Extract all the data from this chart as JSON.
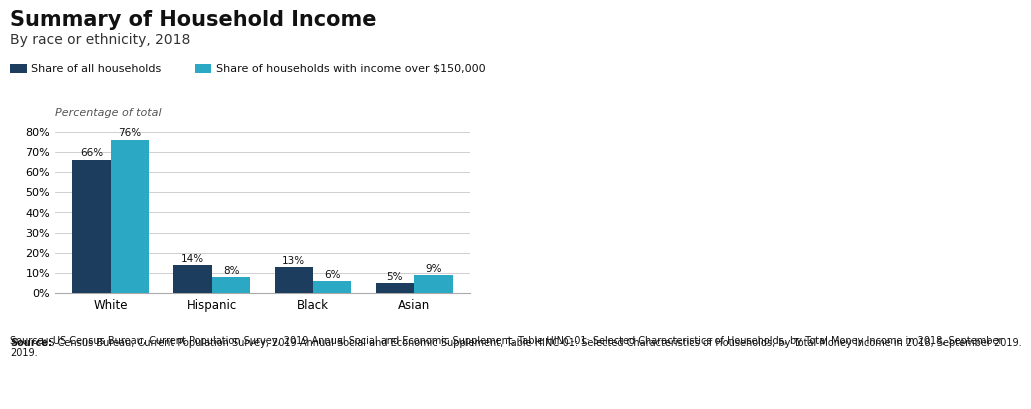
{
  "title": "Summary of Household Income",
  "subtitle": "By race or ethnicity, 2018",
  "ylabel": "Percentage of total",
  "categories": [
    "White",
    "Hispanic",
    "Black",
    "Asian"
  ],
  "series1_label": "Share of all households",
  "series2_label": "Share of households with income over $150,000",
  "series1_values": [
    66,
    14,
    13,
    5
  ],
  "series2_values": [
    76,
    8,
    6,
    9
  ],
  "series1_color": "#1c3d5e",
  "series2_color": "#2aa8c4",
  "bar_width": 0.38,
  "ylim": [
    0,
    85
  ],
  "yticks": [
    0,
    10,
    20,
    30,
    40,
    50,
    60,
    70,
    80
  ],
  "ytick_labels": [
    "0%",
    "10%",
    "20%",
    "30%",
    "40%",
    "50%",
    "60%",
    "70%",
    "80%"
  ],
  "background_color": "#ffffff",
  "grid_color": "#c8c8c8",
  "source_plain": "  US Census Bureau, Current Population Survey, 2019 Annual Social and Economic Supplement, Table HINC-01: Selected Characteristics of Households, by Total Money Income in 2018, September 2019.",
  "source_bold": "Source:",
  "value_fontsize": 7.5,
  "tick_fontsize": 8,
  "title_fontsize": 15,
  "subtitle_fontsize": 10,
  "legend_fontsize": 8,
  "source_fontsize": 7,
  "ylabel_fontsize": 8
}
